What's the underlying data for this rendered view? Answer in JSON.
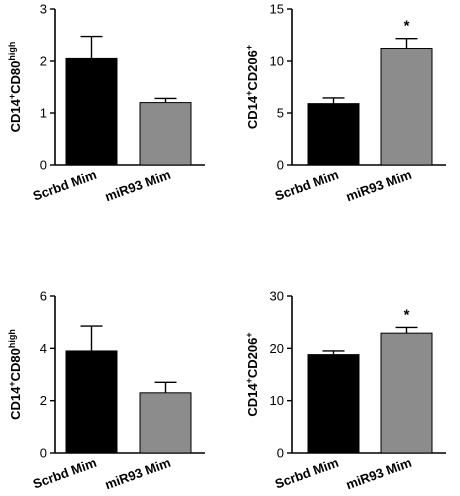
{
  "chart_data": [
    {
      "type": "bar",
      "categories": [
        "Scrbd Mim",
        "miR93 Mim"
      ],
      "values": [
        2.05,
        1.2
      ],
      "errors": [
        0.42,
        0.08
      ],
      "ylim": [
        0,
        3
      ],
      "yticks": [
        "0",
        "1",
        "2",
        "3"
      ],
      "ylabel": {
        "base1": "CD14",
        "sup1": "+",
        "base2": "CD80",
        "sup2": "high"
      },
      "colors": [
        "#000000",
        "#8c8c8c"
      ],
      "significance": [
        "",
        ""
      ]
    },
    {
      "type": "bar",
      "categories": [
        "Scrbd Mim",
        "miR93 Mim"
      ],
      "values": [
        5.9,
        11.2
      ],
      "errors": [
        0.55,
        0.95
      ],
      "ylim": [
        0,
        15
      ],
      "yticks": [
        "0",
        "5",
        "10",
        "15"
      ],
      "ylabel": {
        "base1": "CD14",
        "sup1": "+",
        "base2": "CD206",
        "sup2": "+"
      },
      "colors": [
        "#000000",
        "#8c8c8c"
      ],
      "significance": [
        "",
        "*"
      ]
    },
    {
      "type": "bar",
      "categories": [
        "Scrbd Mim",
        "miR93 Mim"
      ],
      "values": [
        3.9,
        2.3
      ],
      "errors": [
        0.95,
        0.4
      ],
      "ylim": [
        0,
        6
      ],
      "yticks": [
        "0",
        "2",
        "4",
        "6"
      ],
      "ylabel": {
        "base1": "CD14",
        "sup1": "+",
        "base2": "CD80",
        "sup2": "high"
      },
      "colors": [
        "#000000",
        "#8c8c8c"
      ],
      "significance": [
        "",
        ""
      ]
    },
    {
      "type": "bar",
      "categories": [
        "Scrbd Mim",
        "miR93 Mim"
      ],
      "values": [
        18.8,
        22.9
      ],
      "errors": [
        0.7,
        1.1
      ],
      "ylim": [
        0,
        30
      ],
      "yticks": [
        "0",
        "10",
        "20",
        "30"
      ],
      "ylabel": {
        "base1": "CD14",
        "sup1": "+",
        "base2": "CD206",
        "sup2": "+"
      },
      "colors": [
        "#000000",
        "#8c8c8c"
      ],
      "significance": [
        "",
        "*"
      ]
    }
  ]
}
